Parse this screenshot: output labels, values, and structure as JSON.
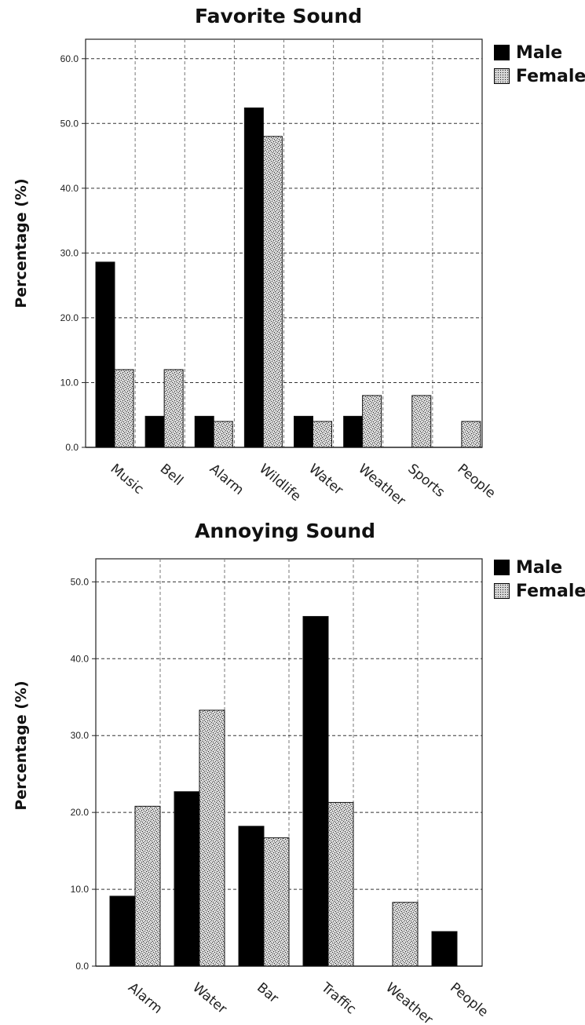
{
  "chart_data": [
    {
      "type": "bar",
      "title": "Favorite Sound",
      "ylabel": "Percentage (%)",
      "xlabel": "",
      "ylim": [
        0,
        63
      ],
      "yticks": [
        "0.0",
        "10.0",
        "20.0",
        "30.0",
        "40.0",
        "50.0",
        "60.0"
      ],
      "categories": [
        "Music",
        "Bell",
        "Alarm",
        "Wildlife",
        "Water",
        "Weather",
        "Sports",
        "People"
      ],
      "series": [
        {
          "name": "Male",
          "values": [
            28.6,
            4.8,
            4.8,
            52.4,
            4.8,
            4.8,
            0,
            0
          ]
        },
        {
          "name": "Female",
          "values": [
            12.0,
            12.0,
            4.0,
            48.0,
            4.0,
            8.0,
            8.0,
            4.0
          ]
        }
      ],
      "grid": true,
      "legend": "top-right"
    },
    {
      "type": "bar",
      "title": "Annoying Sound",
      "ylabel": "Percentage (%)",
      "xlabel": "",
      "ylim": [
        0,
        53
      ],
      "yticks": [
        "0.0",
        "10.0",
        "20.0",
        "30.0",
        "40.0",
        "50.0"
      ],
      "categories": [
        "Alarm",
        "Water",
        "Bar",
        "Traffic",
        "Weather",
        "People"
      ],
      "series": [
        {
          "name": "Male",
          "values": [
            9.1,
            22.7,
            18.2,
            45.5,
            0,
            4.5
          ]
        },
        {
          "name": "Female",
          "values": [
            20.8,
            33.3,
            16.7,
            21.3,
            8.3,
            0
          ]
        }
      ],
      "grid": true,
      "legend": "top-right"
    }
  ],
  "colors": {
    "male": "#000000",
    "female": "#d6d6d6",
    "grid": "#555555"
  }
}
